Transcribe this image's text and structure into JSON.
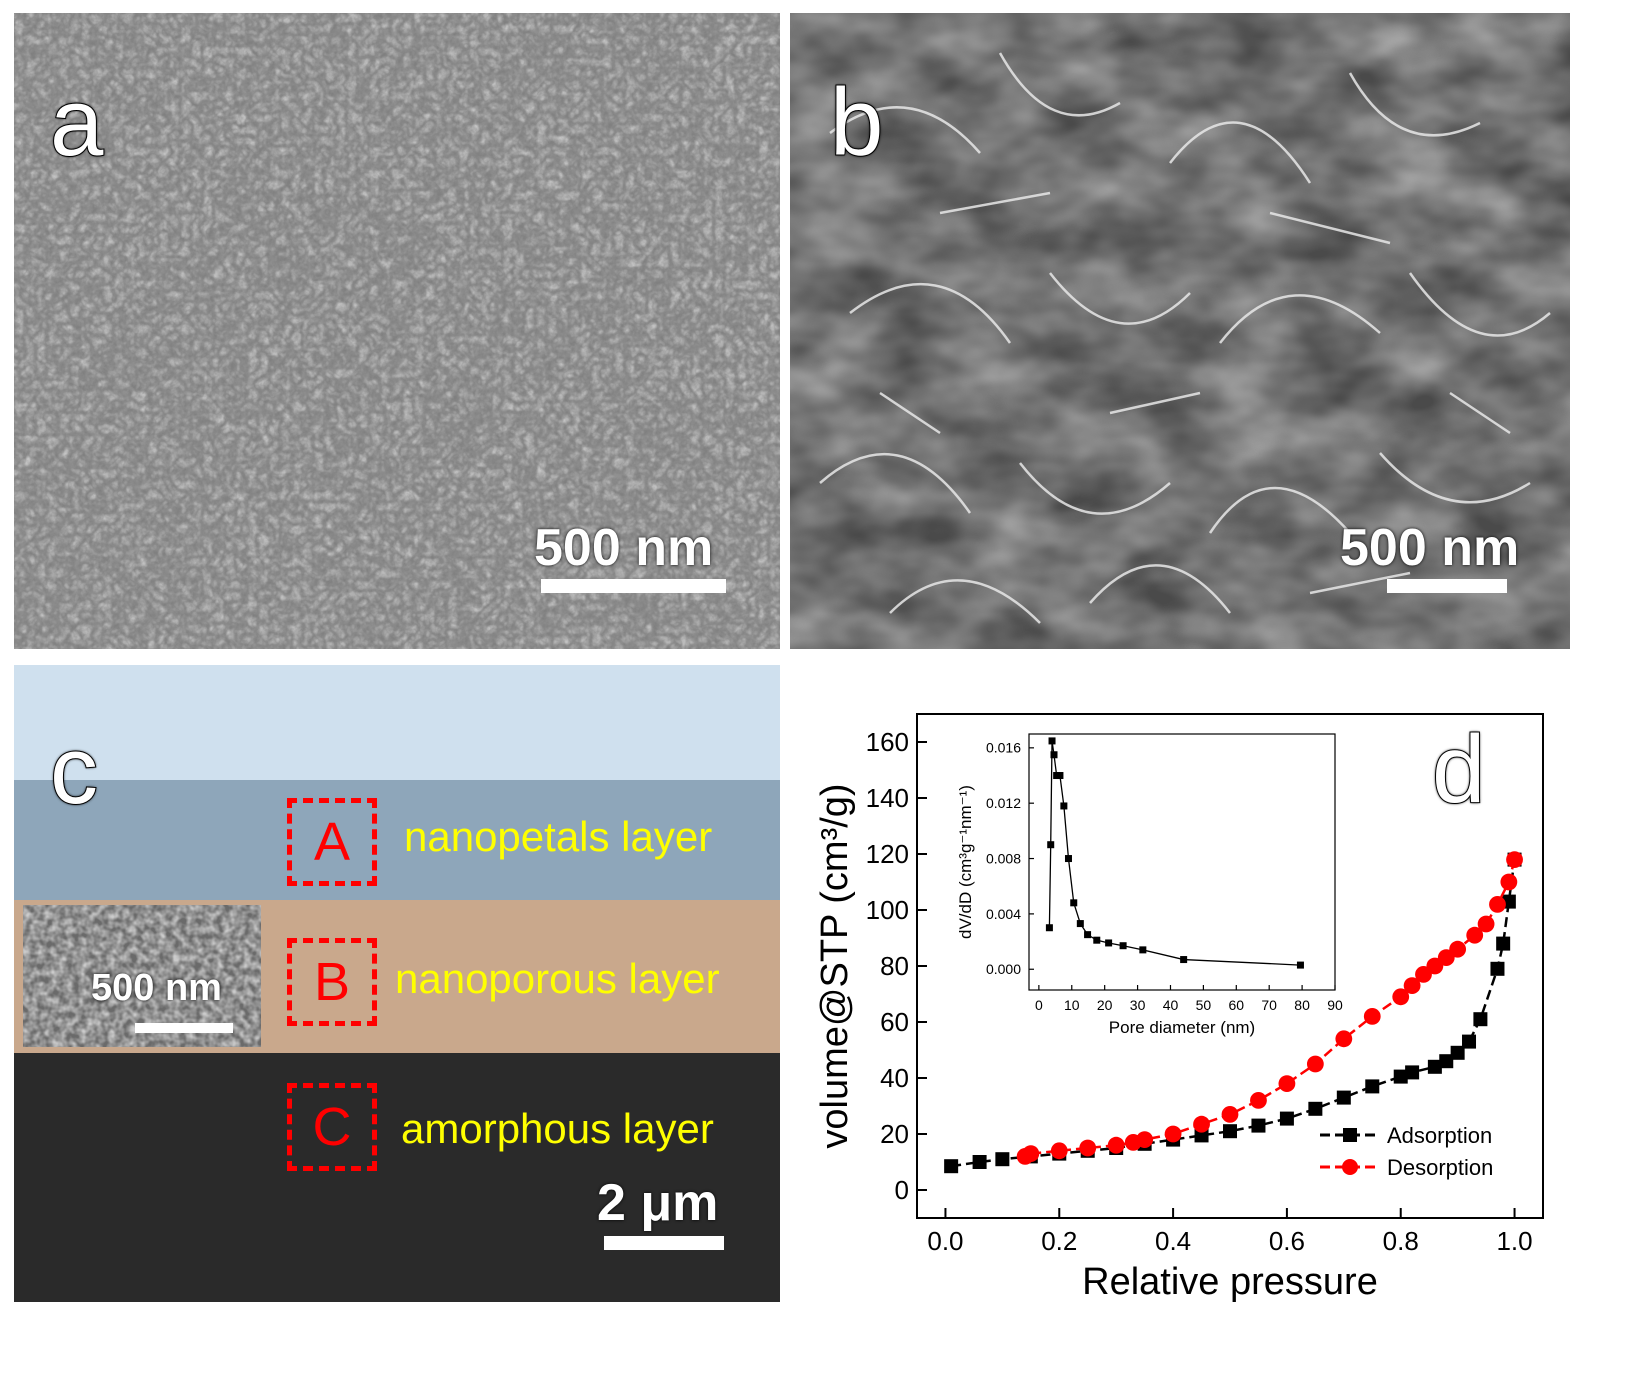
{
  "panels": {
    "a": {
      "label": "a",
      "scalebar": "500 nm"
    },
    "b": {
      "label": "b",
      "scalebar": "500 nm"
    },
    "c": {
      "label": "c",
      "scalebar": "2 μm",
      "inset_scalebar": "500 nm",
      "layers": [
        {
          "box": "A",
          "label": "nanopetals layer"
        },
        {
          "box": "B",
          "label": "nanoporous layer"
        },
        {
          "box": "C",
          "label": "amorphous layer"
        }
      ],
      "colors": {
        "top": "#cfe0ee",
        "petals": "#8ea6ba",
        "porous": "#c9a88c",
        "amorphous": "#2a2a2a",
        "roi": "#ff0000",
        "label": "#ffff00"
      }
    },
    "d": {
      "label": "d"
    }
  },
  "chart_data": [
    {
      "type": "line",
      "xlabel": "Relative pressure",
      "ylabel": "volume@STP (cm³/g)",
      "xlim": [
        -0.05,
        1.05
      ],
      "ylim": [
        -10,
        170
      ],
      "xticks": [
        "0.0",
        "0.2",
        "0.4",
        "0.6",
        "0.8",
        "1.0"
      ],
      "yticks": [
        "0",
        "20",
        "40",
        "60",
        "80",
        "100",
        "120",
        "140",
        "160"
      ],
      "legend_position": "bottom-right",
      "series": [
        {
          "name": "Adsorption",
          "color": "#000000",
          "marker": "square",
          "x": [
            0.01,
            0.06,
            0.1,
            0.15,
            0.2,
            0.25,
            0.3,
            0.35,
            0.4,
            0.45,
            0.5,
            0.55,
            0.6,
            0.65,
            0.7,
            0.75,
            0.8,
            0.82,
            0.86,
            0.88,
            0.9,
            0.92,
            0.94,
            0.97,
            0.98,
            0.99,
            1.0
          ],
          "y": [
            8.5,
            10,
            11,
            12,
            13,
            14,
            15,
            16.5,
            18,
            19.5,
            21,
            23,
            25.5,
            29,
            33,
            37,
            40.5,
            42,
            44,
            46,
            49,
            53,
            61,
            79,
            88,
            103,
            118
          ]
        },
        {
          "name": "Desorption",
          "color": "#ff0000",
          "marker": "circle",
          "x": [
            1.0,
            0.99,
            0.97,
            0.95,
            0.93,
            0.9,
            0.88,
            0.86,
            0.84,
            0.82,
            0.8,
            0.75,
            0.7,
            0.65,
            0.6,
            0.55,
            0.5,
            0.45,
            0.4,
            0.35,
            0.33,
            0.3,
            0.25,
            0.2,
            0.15,
            0.14
          ],
          "y": [
            118,
            110,
            102,
            95,
            91,
            86,
            83,
            80,
            77,
            73,
            69,
            62,
            54,
            45,
            38,
            32,
            27,
            23.5,
            20,
            18,
            17,
            16,
            15,
            14,
            13,
            12
          ]
        }
      ]
    },
    {
      "type": "line",
      "xlabel": "Pore diameter (nm)",
      "ylabel": "dV/dD (cm³g⁻¹nm⁻¹)",
      "xlim": [
        -3,
        90
      ],
      "ylim": [
        -0.0015,
        0.017
      ],
      "xticks": [
        "0",
        "10",
        "20",
        "30",
        "40",
        "50",
        "60",
        "70",
        "80",
        "90"
      ],
      "yticks": [
        "0.000",
        "0.004",
        "0.008",
        "0.012",
        "0.016"
      ],
      "series": [
        {
          "name": "",
          "color": "#000000",
          "marker": "square",
          "x": [
            3.2,
            3.6,
            4.0,
            4.6,
            5.4,
            6.4,
            7.6,
            9.0,
            10.6,
            12.6,
            14.8,
            17.6,
            21.2,
            25.6,
            31.6,
            44,
            79.5
          ],
          "y": [
            0.003,
            0.009,
            0.0165,
            0.0155,
            0.014,
            0.014,
            0.0118,
            0.008,
            0.0048,
            0.0033,
            0.0025,
            0.0021,
            0.0019,
            0.0017,
            0.0014,
            0.0007,
            0.0003
          ]
        }
      ]
    }
  ]
}
